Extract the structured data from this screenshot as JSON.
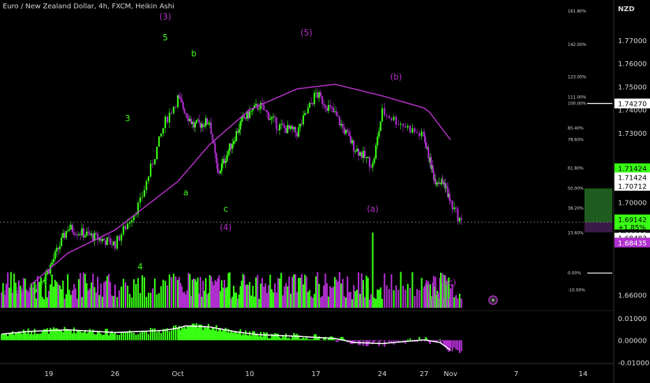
{
  "title": "Euro / New Zealand Dollar, 4h, FXCM, Heikin Ashi",
  "currency": "NZD",
  "colors": {
    "up": "#39ff14",
    "down": "#b02fcf",
    "ma": "#b530c8",
    "signal": "#ffffff",
    "background": "#000000"
  },
  "chart_data": [
    {
      "type": "candlestick",
      "title": "Euro / New Zealand Dollar, 4h, FXCM, Heikin Ashi",
      "x_ticks": [
        "19",
        "26",
        "Oct",
        "10",
        "17",
        "24",
        "27",
        "Nov",
        "7",
        "14"
      ],
      "y_ticks": [
        "1.77000",
        "1.76000",
        "1.75000",
        "1.74000",
        "1.73000",
        "1.71000",
        "1.70000",
        "1.66000"
      ],
      "ylim": [
        1.655,
        1.785
      ],
      "price_tags": [
        "1.74270",
        "1.71424",
        "1.71424",
        "1.70712",
        "1.69142",
        "+1.85%",
        "02:19:15",
        "1.69099",
        "1.68483",
        "1.68435"
      ],
      "fib_levels": [
        {
          "label": "161.80%",
          "price": 1.7826
        },
        {
          "label": "142.00%",
          "price": 1.7681
        },
        {
          "label": "123.00%",
          "price": 1.7542
        },
        {
          "label": "111.00%",
          "price": 1.7454
        },
        {
          "label": "100.00%",
          "price": 1.7427
        },
        {
          "label": "85.40%",
          "price": 1.732
        },
        {
          "label": "78.60%",
          "price": 1.727
        },
        {
          "label": "61.80%",
          "price": 1.7147
        },
        {
          "label": "50.00%",
          "price": 1.706
        },
        {
          "label": "38.20%",
          "price": 1.6974
        },
        {
          "label": "23.60%",
          "price": 1.6867
        },
        {
          "label": "0.00%",
          "price": 1.6694
        },
        {
          "label": "-10.00%",
          "price": 1.6621
        }
      ],
      "wave_labels": [
        {
          "text": "(3)",
          "color": "purple",
          "x_date": "Sep 30",
          "price": 1.779
        },
        {
          "text": "5",
          "color": "green",
          "x_date": "Sep 30",
          "price": 1.77
        },
        {
          "text": "b",
          "color": "green",
          "x_date": "Oct 3",
          "price": 1.763
        },
        {
          "text": "3",
          "color": "green",
          "x_date": "Sep 27",
          "price": 1.735
        },
        {
          "text": "a",
          "color": "green",
          "x_date": "Oct 2",
          "price": 1.703
        },
        {
          "text": "c",
          "color": "green",
          "x_date": "Oct 7",
          "price": 1.696
        },
        {
          "text": "(4)",
          "color": "purple",
          "x_date": "Oct 7",
          "price": 1.688
        },
        {
          "text": "4",
          "color": "green",
          "x_date": "Sep 28",
          "price": 1.671
        },
        {
          "text": "(5)",
          "color": "purple",
          "x_date": "Oct 16",
          "price": 1.772
        },
        {
          "text": "(b)",
          "color": "purple",
          "x_date": "Oct 25",
          "price": 1.753
        },
        {
          "text": "(a)",
          "color": "purple",
          "x_date": "Oct 23",
          "price": 1.696
        },
        {
          "text": "(c)",
          "color": "purple",
          "x_date": "Nov 1",
          "price": 1.664
        }
      ],
      "series": [
        {
          "name": "",
          "type": "candle",
          "key_prices": [
            {
              "date": "Sep 17",
              "price": 1.66
            },
            {
              "date": "Sep 19",
              "price": 1.671
            },
            {
              "date": "Sep 21",
              "price": 1.689
            },
            {
              "date": "Sep 23",
              "price": 1.686
            },
            {
              "date": "Sep 26",
              "price": 1.682
            },
            {
              "date": "Sep 28",
              "price": 1.7
            },
            {
              "date": "Sep 30",
              "price": 1.735
            },
            {
              "date": "Oct 1",
              "price": 1.745
            },
            {
              "date": "Oct 3",
              "price": 1.733
            },
            {
              "date": "Oct 5",
              "price": 1.735
            },
            {
              "date": "Oct 6",
              "price": 1.712
            },
            {
              "date": "Oct 9",
              "price": 1.735
            },
            {
              "date": "Oct 11",
              "price": 1.742
            },
            {
              "date": "Oct 13",
              "price": 1.733
            },
            {
              "date": "Oct 15",
              "price": 1.73
            },
            {
              "date": "Oct 17",
              "price": 1.747
            },
            {
              "date": "Oct 19",
              "price": 1.738
            },
            {
              "date": "Oct 21",
              "price": 1.724
            },
            {
              "date": "Oct 23",
              "price": 1.716
            },
            {
              "date": "Oct 24",
              "price": 1.739
            },
            {
              "date": "Oct 27",
              "price": 1.728
            },
            {
              "date": "Oct 29",
              "price": 1.71
            },
            {
              "date": "Oct 31",
              "price": 1.708
            },
            {
              "date": "Nov 2",
              "price": 1.691
            }
          ]
        },
        {
          "name": "",
          "type": "moving-average",
          "key_prices": [
            {
              "date": "Sep 17",
              "price": 1.664
            },
            {
              "date": "Sep 21",
              "price": 1.678
            },
            {
              "date": "Sep 26",
              "price": 1.688
            },
            {
              "date": "Oct 1",
              "price": 1.709
            },
            {
              "date": "Oct 5",
              "price": 1.725
            },
            {
              "date": "Oct 10",
              "price": 1.74
            },
            {
              "date": "Oct 15",
              "price": 1.749
            },
            {
              "date": "Oct 19",
              "price": 1.751
            },
            {
              "date": "Oct 24",
              "price": 1.746
            },
            {
              "date": "Oct 28",
              "price": 1.739
            },
            {
              "date": "Nov 1",
              "price": 1.727
            }
          ]
        }
      ],
      "volume_spike": {
        "date": "Oct 23"
      },
      "oscillator": {
        "y_ticks": [
          "0.01000",
          "0.00000",
          "-0.01000"
        ],
        "ylim": [
          -0.0105,
          0.0115
        ],
        "signal_points": [
          {
            "date": "Sep 14",
            "value": 0.0028
          },
          {
            "date": "Sep 17",
            "value": 0.004
          },
          {
            "date": "Sep 21",
            "value": 0.0047
          },
          {
            "date": "Sep 26",
            "value": 0.0035
          },
          {
            "date": "Sep 30",
            "value": 0.0045
          },
          {
            "date": "Oct 2",
            "value": 0.0065
          },
          {
            "date": "Oct 5",
            "value": 0.006
          },
          {
            "date": "Oct 8",
            "value": 0.004
          },
          {
            "date": "Oct 11",
            "value": 0.0025
          },
          {
            "date": "Oct 15",
            "value": 0.0018
          },
          {
            "date": "Oct 19",
            "value": 0.0008
          },
          {
            "date": "Oct 21",
            "value": -0.001
          },
          {
            "date": "Oct 24",
            "value": -0.0015
          },
          {
            "date": "Oct 27",
            "value": 0.0002
          },
          {
            "date": "Oct 30",
            "value": -0.001
          },
          {
            "date": "Nov 1",
            "value": -0.0045
          }
        ]
      }
    }
  ]
}
